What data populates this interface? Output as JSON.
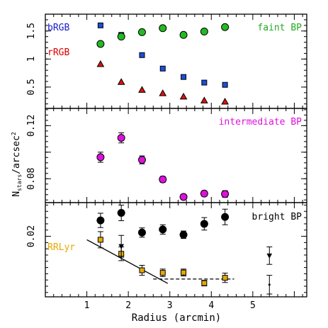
{
  "chart_data": [
    {
      "type": "scatter",
      "panel": "top",
      "ylim": [
        0.12,
        1.8
      ],
      "yticks": [
        0.5,
        1,
        1.5
      ],
      "ytick_labels": [
        "0.5",
        "1",
        "1.5"
      ],
      "legend": [
        {
          "label": "bRGB",
          "color": "#1a1acc",
          "placement": "top-left"
        },
        {
          "label": "rRGB",
          "color": "#dd0000",
          "placement": "left"
        },
        {
          "label": "faint BP",
          "color": "#22aa22",
          "placement": "top-right"
        }
      ],
      "series": [
        {
          "name": "bRGB",
          "marker": "square",
          "color": "#1a4fdd",
          "points": [
            [
              1.33,
              1.6
            ],
            [
              1.83,
              1.43
            ],
            [
              2.33,
              1.07
            ],
            [
              2.83,
              0.83
            ],
            [
              3.33,
              0.68
            ],
            [
              3.83,
              0.58
            ],
            [
              4.33,
              0.54
            ]
          ]
        },
        {
          "name": "rRGB",
          "marker": "triangle",
          "color": "#dd1111",
          "points": [
            [
              1.33,
              0.91
            ],
            [
              1.83,
              0.59
            ],
            [
              2.33,
              0.45
            ],
            [
              2.83,
              0.39
            ],
            [
              3.33,
              0.33
            ],
            [
              3.83,
              0.26
            ],
            [
              4.33,
              0.24
            ]
          ]
        },
        {
          "name": "faint BP",
          "marker": "circle",
          "color": "#22bb22",
          "points": [
            [
              1.33,
              1.27
            ],
            [
              1.83,
              1.4
            ],
            [
              2.33,
              1.48
            ],
            [
              2.83,
              1.55
            ],
            [
              3.33,
              1.43
            ],
            [
              3.83,
              1.49
            ],
            [
              4.33,
              1.57
            ]
          ]
        }
      ]
    },
    {
      "type": "scatter",
      "panel": "middle",
      "ylabel": "N_stars/arcsec^2",
      "ylim": [
        0.062,
        0.133
      ],
      "yticks": [
        0.08,
        0.1,
        0.12
      ],
      "ytick_labels": [
        "0.08",
        "",
        "0.12"
      ],
      "legend": [
        {
          "label": "intermediate BP",
          "color": "#dd11dd",
          "placement": "top-right"
        }
      ],
      "series": [
        {
          "name": "intermediate BP",
          "marker": "circle",
          "color": "#dd11dd",
          "points": [
            {
              "x": 1.33,
              "y": 0.0962,
              "err": 0.0038
            },
            {
              "x": 1.83,
              "y": 0.1108,
              "err": 0.0038
            },
            {
              "x": 2.33,
              "y": 0.0942,
              "err": 0.003
            },
            {
              "x": 2.83,
              "y": 0.0795,
              "err": 0.0022
            },
            {
              "x": 3.33,
              "y": 0.0663,
              "err": 0.0018
            },
            {
              "x": 3.83,
              "y": 0.0688,
              "err": 0.002
            },
            {
              "x": 4.33,
              "y": 0.0685,
              "err": 0.0025
            }
          ]
        }
      ]
    },
    {
      "type": "scatter",
      "panel": "bottom",
      "xlabel": "Radius (arcmin)",
      "xlim": [
        0,
        6.3
      ],
      "xticks": [
        1,
        2,
        3,
        4,
        5
      ],
      "ylim": [
        0.0006,
        0.0308
      ],
      "yticks": [
        0.02
      ],
      "ytick_labels": [
        "0.02"
      ],
      "legend": [
        {
          "label": "bright BP",
          "color": "#000000",
          "placement": "top-right"
        },
        {
          "label": "RRLyr",
          "color": "#e6a800",
          "placement": "left"
        }
      ],
      "series": [
        {
          "name": "bright BP",
          "marker": "circle",
          "color": "#000000",
          "points": [
            {
              "x": 1.33,
              "y": 0.0251,
              "err": 0.0023
            },
            {
              "x": 1.83,
              "y": 0.0275,
              "err": 0.0025
            },
            {
              "x": 2.33,
              "y": 0.0212,
              "err": 0.0015
            },
            {
              "x": 2.83,
              "y": 0.0222,
              "err": 0.0015
            },
            {
              "x": 3.33,
              "y": 0.0205,
              "err": 0.0012
            },
            {
              "x": 3.83,
              "y": 0.024,
              "err": 0.002
            },
            {
              "x": 4.33,
              "y": 0.0262,
              "err": 0.0025
            }
          ]
        },
        {
          "name": "RRLyr",
          "marker": "square",
          "color": "#e6a800",
          "points": [
            {
              "x": 1.33,
              "y": 0.0189,
              "err": 0.0026
            },
            {
              "x": 1.83,
              "y": 0.0144,
              "err": 0.0022
            },
            {
              "x": 2.33,
              "y": 0.0091,
              "err": 0.0016
            },
            {
              "x": 2.83,
              "y": 0.0083,
              "err": 0.0012
            },
            {
              "x": 3.33,
              "y": 0.0084,
              "err": 0.0011
            },
            {
              "x": 3.83,
              "y": 0.005,
              "err": 0.0009
            },
            {
              "x": 4.33,
              "y": 0.0067,
              "err": 0.0015
            }
          ]
        },
        {
          "name": "",
          "marker": "triangle-down",
          "color": "#000000",
          "points": [
            {
              "x": 1.83,
              "y": 0.0168,
              "err": 0.0035
            },
            {
              "x": 5.4,
              "y": 0.0138,
              "err": 0.0028
            }
          ]
        },
        {
          "name": "",
          "marker": "dot",
          "color": "#000000",
          "points": [
            {
              "x": 5.4,
              "y": 0.0045,
              "err": 0.003
            }
          ]
        }
      ],
      "lines": [
        {
          "style": "solid",
          "points": [
            [
              1.0,
              0.0189
            ],
            [
              2.95,
              0.0049
            ]
          ]
        },
        {
          "style": "dashed",
          "points": [
            [
              2.6,
              0.0063
            ],
            [
              4.55,
              0.0063
            ]
          ]
        }
      ]
    }
  ]
}
